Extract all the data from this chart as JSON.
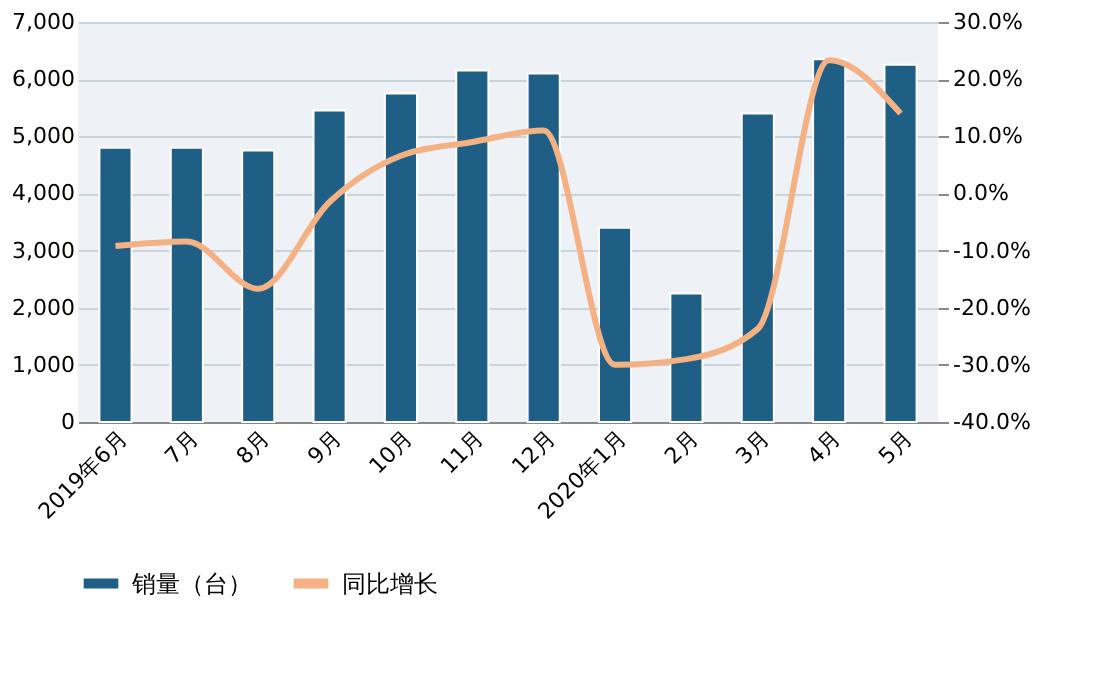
{
  "chart_data": {
    "type": "bar",
    "categories": [
      "2019年6月",
      "7月",
      "8月",
      "9月",
      "10月",
      "11月",
      "12月",
      "2020年1月",
      "2月",
      "3月",
      "4月",
      "5月"
    ],
    "series": [
      {
        "name": "销量（台）",
        "color": "#1f5f86",
        "values": [
          4800,
          4800,
          4750,
          5450,
          5750,
          6150,
          6100,
          3400,
          2250,
          5400,
          6350,
          6250
        ]
      },
      {
        "name": "同比增长",
        "color": "#f4b183",
        "type": "line",
        "axis": "y2",
        "values": [
          -9.2,
          -8.4,
          -16.7,
          -1.5,
          6.6,
          9.0,
          11.0,
          -30.0,
          -29.0,
          -23.7,
          23.3,
          14.0
        ]
      }
    ],
    "ylim": [
      0,
      7000
    ],
    "yticks": [
      {
        "value": 0,
        "label": "0"
      },
      {
        "value": 1000,
        "label": "1,000"
      },
      {
        "value": 2000,
        "label": "2,000"
      },
      {
        "value": 3000,
        "label": "3,000"
      },
      {
        "value": 4000,
        "label": "4,000"
      },
      {
        "value": 5000,
        "label": "5,000"
      },
      {
        "value": 6000,
        "label": "6,000"
      },
      {
        "value": 7000,
        "label": "7,000"
      }
    ],
    "y2lim": [
      -40,
      30
    ],
    "y2ticks": [
      {
        "value": -40,
        "label": "-40.0%"
      },
      {
        "value": -30,
        "label": "-30.0%"
      },
      {
        "value": -20,
        "label": "-20.0%"
      },
      {
        "value": -10,
        "label": "-10.0%"
      },
      {
        "value": 0,
        "label": "0.0%"
      },
      {
        "value": 10,
        "label": "10.0%"
      },
      {
        "value": 20,
        "label": "20.0%"
      },
      {
        "value": 30,
        "label": "30.0%"
      }
    ],
    "grid": true,
    "legend": "bottom"
  }
}
